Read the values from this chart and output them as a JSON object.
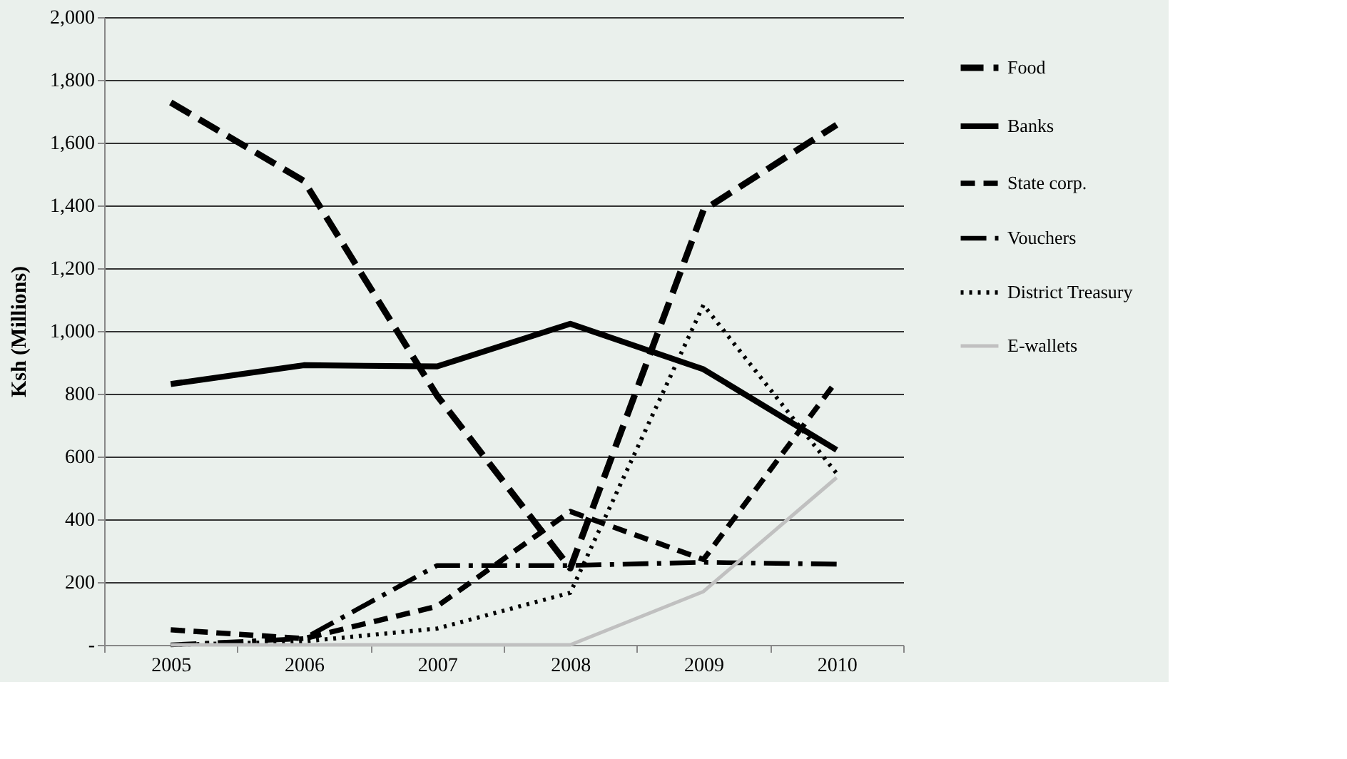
{
  "chart_data": {
    "type": "line",
    "ylabel": "Ksh (Millions)",
    "categories": [
      "2005",
      "2006",
      "2007",
      "2008",
      "2009",
      "2010"
    ],
    "ylim": [
      0,
      2000
    ],
    "yticks": [
      {
        "value": 0,
        "label": "-"
      },
      {
        "value": 200,
        "label": "200"
      },
      {
        "value": 400,
        "label": "400"
      },
      {
        "value": 600,
        "label": "600"
      },
      {
        "value": 800,
        "label": "800"
      },
      {
        "value": 1000,
        "label": "1,000"
      },
      {
        "value": 1200,
        "label": "1,200"
      },
      {
        "value": 1400,
        "label": "1,400"
      },
      {
        "value": 1600,
        "label": "1,600"
      },
      {
        "value": 1800,
        "label": "1,800"
      },
      {
        "value": 2000,
        "label": "2,000"
      }
    ],
    "grid": "y",
    "legend": "right",
    "marker": "none",
    "series": [
      {
        "name": "Food",
        "color": "#000000",
        "line_style": "dashed",
        "values": [
          1728,
          1478,
          794,
          244,
          1385,
          1657
        ]
      },
      {
        "name": "Banks",
        "color": "#000000",
        "line_style": "solid",
        "values": [
          831,
          891,
          887,
          1023,
          878,
          621
        ]
      },
      {
        "name": "State corp.",
        "color": "#000000",
        "line_style": "dashed",
        "values": [
          48,
          20,
          123,
          425,
          272,
          841
        ]
      },
      {
        "name": "Vouchers",
        "color": "#000000",
        "line_style": "dashed",
        "values": [
          0,
          20,
          253,
          253,
          263,
          257
        ]
      },
      {
        "name": "District Treasury",
        "color": "#000000",
        "line_style": "dotted",
        "values": [
          0,
          11,
          52,
          166,
          1083,
          546
        ]
      },
      {
        "name": "E-wallets",
        "color": "#c0c0c0",
        "line_style": "solid",
        "values": [
          0,
          0,
          0,
          0,
          170,
          533
        ]
      }
    ]
  }
}
